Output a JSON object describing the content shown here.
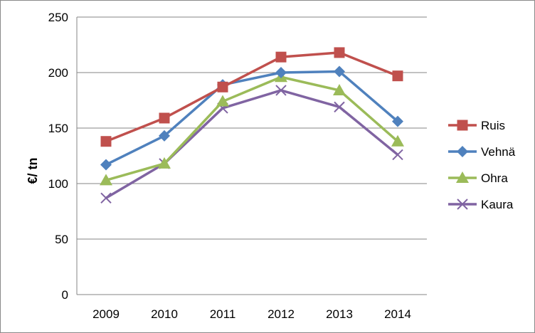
{
  "chart_data": {
    "type": "line",
    "title": "",
    "xlabel": "",
    "ylabel": "€/ tn",
    "categories": [
      "2009",
      "2010",
      "2011",
      "2012",
      "2013",
      "2014"
    ],
    "ylim": [
      0,
      250
    ],
    "yticks": [
      0,
      50,
      100,
      150,
      200,
      250
    ],
    "grid": true,
    "legend": "right",
    "series": [
      {
        "name": "Ruis",
        "color": "#c0504d",
        "marker": "square",
        "values": [
          138,
          159,
          187,
          214,
          218,
          197
        ]
      },
      {
        "name": "Vehnä",
        "color": "#4f81bd",
        "marker": "diamond",
        "values": [
          117,
          143,
          189,
          200,
          201,
          156
        ]
      },
      {
        "name": "Ohra",
        "color": "#9bbb59",
        "marker": "triangle",
        "values": [
          103,
          118,
          174,
          196,
          184,
          138
        ]
      },
      {
        "name": "Kaura",
        "color": "#8064a2",
        "marker": "x",
        "values": [
          87,
          118,
          168,
          184,
          169,
          126
        ]
      }
    ]
  }
}
